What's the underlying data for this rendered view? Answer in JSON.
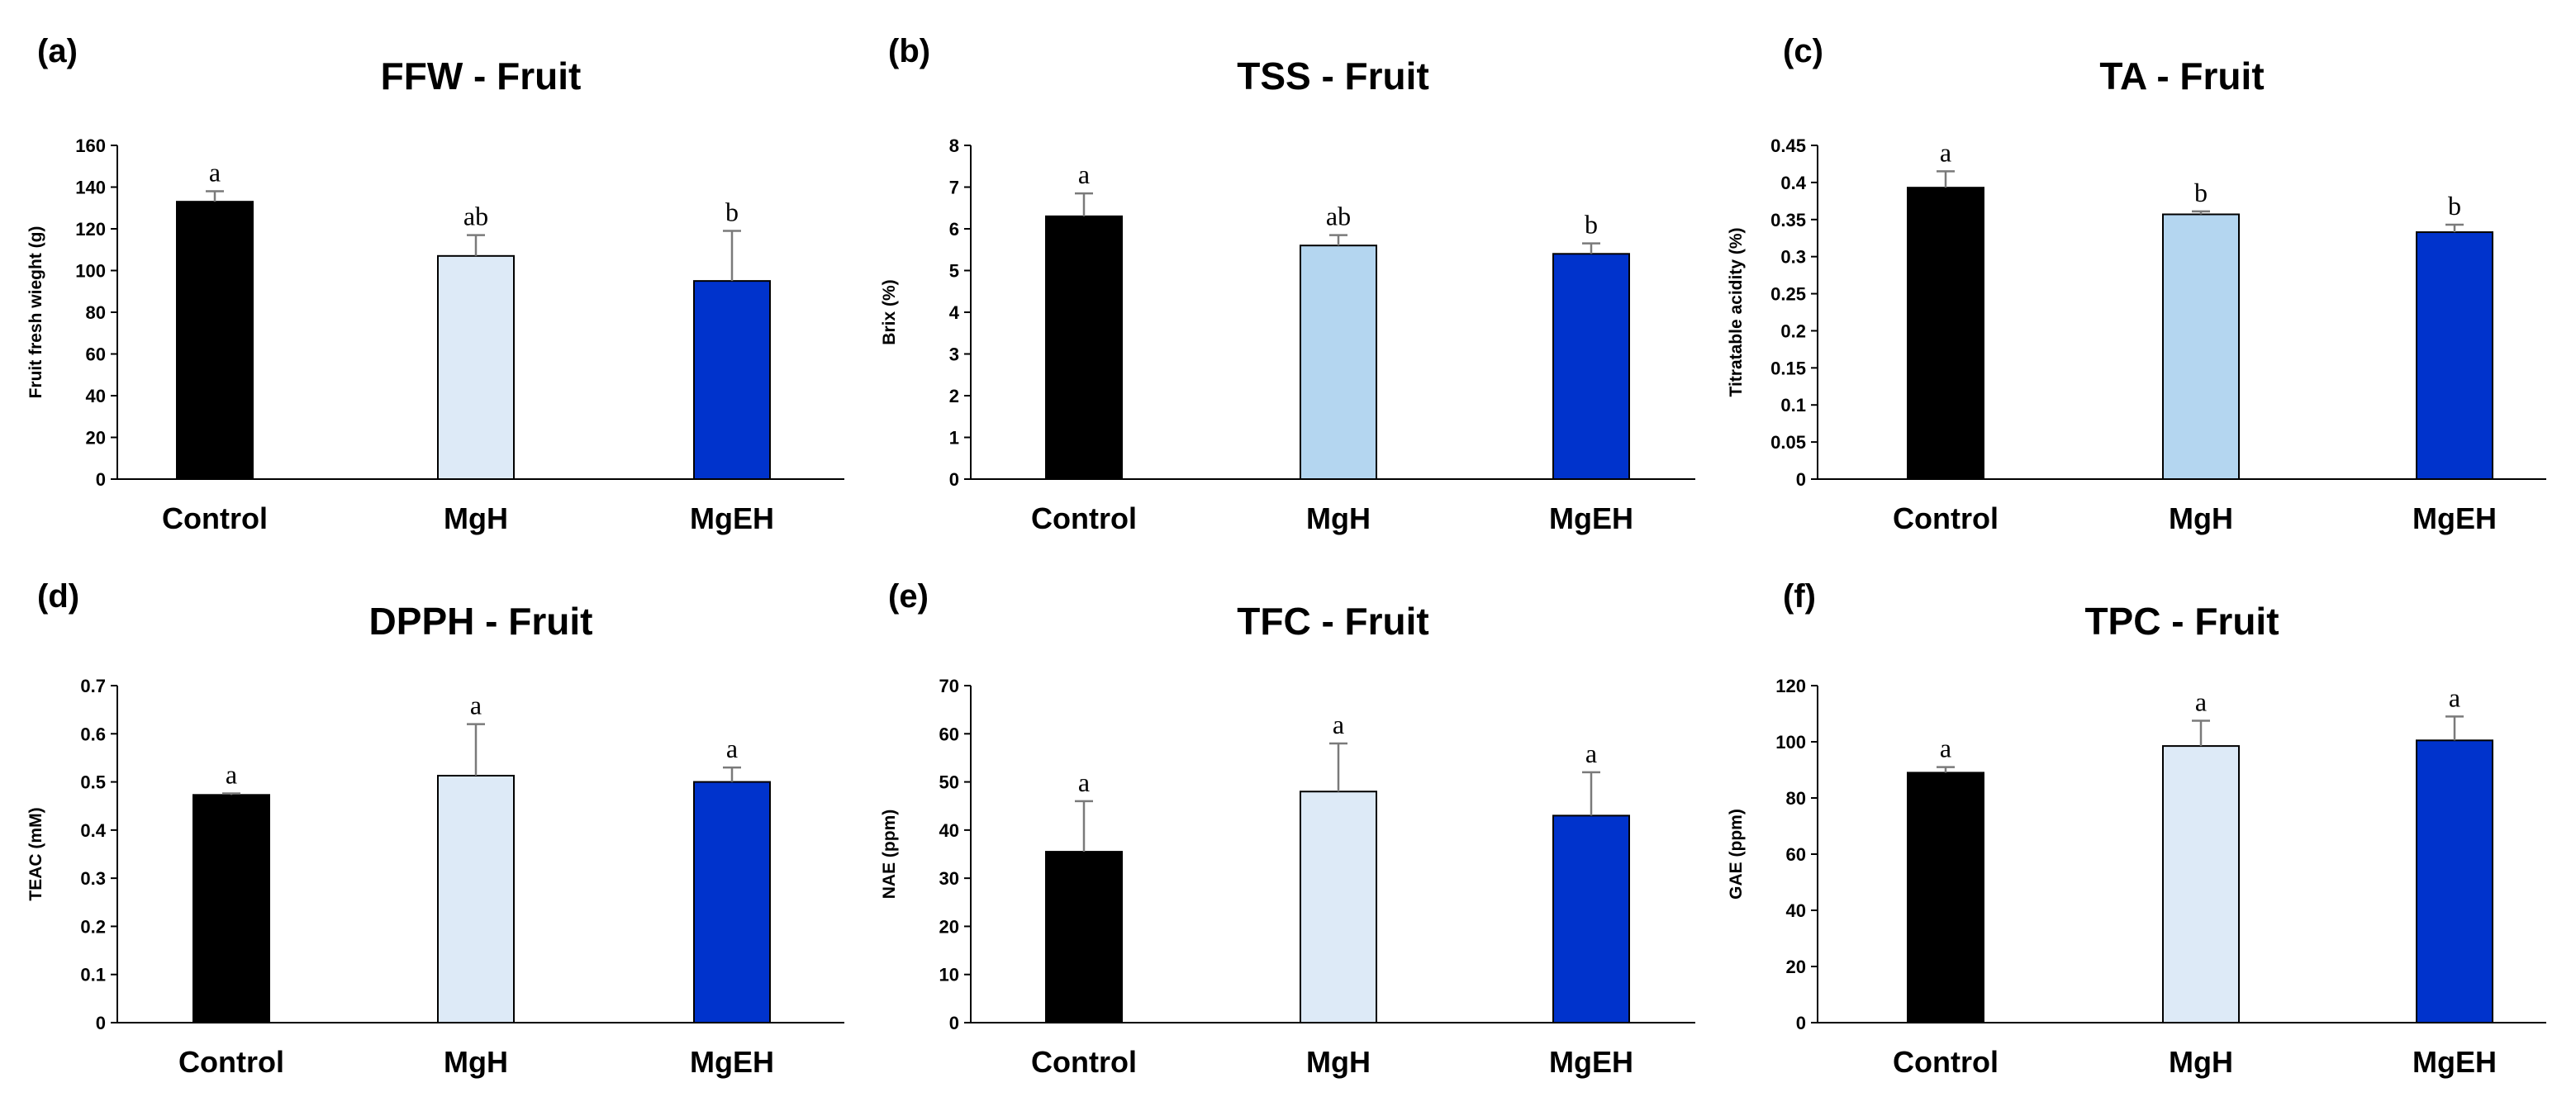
{
  "chart_data": [
    {
      "type": "bar",
      "panel": "(a)",
      "title": "FFW - Fruit",
      "xlabel": "",
      "ylabel": "Fruit fresh wieght (g)",
      "categories": [
        "Control",
        "MgH",
        "MgEH"
      ],
      "values": [
        133,
        107,
        95
      ],
      "errors": [
        5,
        10,
        24
      ],
      "significance": [
        "a",
        "ab",
        "b"
      ],
      "colors": [
        "#000000",
        "#ddeaf7",
        "#0033cc"
      ],
      "ylim": [
        0,
        160
      ],
      "yticks": [
        0,
        20,
        40,
        60,
        80,
        100,
        120,
        140,
        160
      ],
      "ytick_labels": [
        "0",
        "20",
        "40",
        "60",
        "80",
        "100",
        "120",
        "140",
        "160"
      ]
    },
    {
      "type": "bar",
      "panel": "(b)",
      "title": "TSS - Fruit",
      "xlabel": "",
      "ylabel": "Brix (%)",
      "categories": [
        "Control",
        "MgH",
        "MgEH"
      ],
      "values": [
        6.3,
        5.6,
        5.4
      ],
      "errors": [
        0.55,
        0.25,
        0.25
      ],
      "significance": [
        "a",
        "ab",
        "b"
      ],
      "colors": [
        "#000000",
        "#b4d6f0",
        "#0033cc"
      ],
      "ylim": [
        0,
        8
      ],
      "yticks": [
        0,
        1,
        2,
        3,
        4,
        5,
        6,
        7,
        8
      ],
      "ytick_labels": [
        "0",
        "1",
        "2",
        "3",
        "4",
        "5",
        "6",
        "7",
        "8"
      ]
    },
    {
      "type": "bar",
      "panel": "(c)",
      "title": "TA - Fruit",
      "xlabel": "",
      "ylabel": "Titratable acidity (%)",
      "categories": [
        "Control",
        "MgH",
        "MgEH"
      ],
      "values": [
        0.393,
        0.357,
        0.333
      ],
      "errors": [
        0.022,
        0.004,
        0.01
      ],
      "significance": [
        "a",
        "b",
        "b"
      ],
      "colors": [
        "#000000",
        "#b4d6f0",
        "#0033cc"
      ],
      "ylim": [
        0,
        0.45
      ],
      "yticks": [
        0,
        0.05,
        0.1,
        0.15,
        0.2,
        0.25,
        0.3,
        0.35,
        0.4,
        0.45
      ],
      "ytick_labels": [
        "0",
        "0.05",
        "0.1",
        "0.15",
        "0.2",
        "0.25",
        "0.3",
        "0.35",
        "0.4",
        "0.45"
      ]
    },
    {
      "type": "bar",
      "panel": "(d)",
      "title": "DPPH - Fruit",
      "xlabel": "",
      "ylabel": "TEAC (mM)",
      "categories": [
        "Control",
        "MgH",
        "MgEH"
      ],
      "values": [
        0.473,
        0.513,
        0.5
      ],
      "errors": [
        0.003,
        0.107,
        0.03
      ],
      "significance": [
        "a",
        "a",
        "a"
      ],
      "colors": [
        "#000000",
        "#ddeaf7",
        "#0033cc"
      ],
      "ylim": [
        0,
        0.7
      ],
      "yticks": [
        0,
        0.1,
        0.2,
        0.3,
        0.4,
        0.5,
        0.6,
        0.7
      ],
      "ytick_labels": [
        "0",
        "0.1",
        "0.2",
        "0.3",
        "0.4",
        "0.5",
        "0.6",
        "0.7"
      ]
    },
    {
      "type": "bar",
      "panel": "(e)",
      "title": "TFC - Fruit",
      "xlabel": "",
      "ylabel": "NAE (ppm)",
      "categories": [
        "Control",
        "MgH",
        "MgEH"
      ],
      "values": [
        35.5,
        48,
        43
      ],
      "errors": [
        10.5,
        10,
        9
      ],
      "significance": [
        "a",
        "a",
        "a"
      ],
      "colors": [
        "#000000",
        "#ddeaf7",
        "#0033cc"
      ],
      "ylim": [
        0,
        70
      ],
      "yticks": [
        0,
        10,
        20,
        30,
        40,
        50,
        60,
        70
      ],
      "ytick_labels": [
        "0",
        "10",
        "20",
        "30",
        "40",
        "50",
        "60",
        "70"
      ]
    },
    {
      "type": "bar",
      "panel": "(f)",
      "title": "TPC - Fruit",
      "xlabel": "",
      "ylabel": "GAE (ppm)",
      "categories": [
        "Control",
        "MgH",
        "MgEH"
      ],
      "values": [
        89,
        98.5,
        100.5
      ],
      "errors": [
        2,
        9,
        8.5
      ],
      "significance": [
        "a",
        "a",
        "a"
      ],
      "colors": [
        "#000000",
        "#ddeaf7",
        "#0033cc"
      ],
      "ylim": [
        0,
        120
      ],
      "yticks": [
        0,
        20,
        40,
        60,
        80,
        100,
        120
      ],
      "ytick_labels": [
        "0",
        "20",
        "40",
        "60",
        "80",
        "100",
        "120"
      ]
    }
  ]
}
